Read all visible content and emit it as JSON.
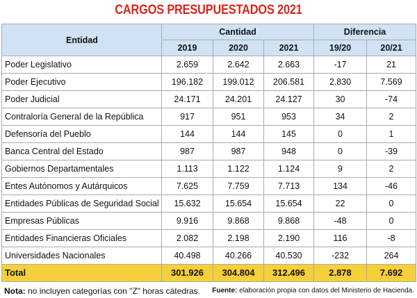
{
  "title": "CARGOS PRESUPUESTADOS 2021",
  "header": {
    "entidad": "Entidad",
    "cantidad": "Cantidad",
    "diferencia": "Diferencia",
    "years": [
      "2019",
      "2020",
      "2021"
    ],
    "diffs": [
      "19/20",
      "20/21"
    ]
  },
  "rows": [
    {
      "entidad": "Poder Legislativo",
      "y2019": "2.659",
      "y2020": "2.642",
      "y2021": "2.663",
      "d1920": "-17",
      "d2021": "21"
    },
    {
      "entidad": "Poder Ejecutivo",
      "y2019": "196.182",
      "y2020": "199.012",
      "y2021": "206.581",
      "d1920": "2.830",
      "d2021": "7.569"
    },
    {
      "entidad": "Poder Judicial",
      "y2019": "24.171",
      "y2020": "24.201",
      "y2021": "24.127",
      "d1920": "30",
      "d2021": "-74"
    },
    {
      "entidad": "Contraloría General de la República",
      "y2019": "917",
      "y2020": "951",
      "y2021": "953",
      "d1920": "34",
      "d2021": "2"
    },
    {
      "entidad": "Defensoría del Pueblo",
      "y2019": "144",
      "y2020": "144",
      "y2021": "145",
      "d1920": "0",
      "d2021": "1"
    },
    {
      "entidad": "Banca Central del Estado",
      "y2019": "987",
      "y2020": "987",
      "y2021": "948",
      "d1920": "0",
      "d2021": "-39"
    },
    {
      "entidad": "Gobiernos Departamentales",
      "y2019": "1.113",
      "y2020": "1.122",
      "y2021": "1.124",
      "d1920": "9",
      "d2021": "2"
    },
    {
      "entidad": "Entes Autónomos y Autárquicos",
      "y2019": "7.625",
      "y2020": "7.759",
      "y2021": "7.713",
      "d1920": "134",
      "d2021": "-46"
    },
    {
      "entidad": "Entidades Públicas de Seguridad Social",
      "y2019": "15.632",
      "y2020": "15.654",
      "y2021": "15.654",
      "d1920": "22",
      "d2021": "0"
    },
    {
      "entidad": "Empresas Públicas",
      "y2019": "9.916",
      "y2020": "9.868",
      "y2021": "9.868",
      "d1920": "-48",
      "d2021": "0"
    },
    {
      "entidad": "Entidades Financieras Oficiales",
      "y2019": "2.082",
      "y2020": "2.198",
      "y2021": "2.190",
      "d1920": "116",
      "d2021": "-8"
    },
    {
      "entidad": "Universidades Nacionales",
      "y2019": "40.498",
      "y2020": "40.266",
      "y2021": "40.530",
      "d1920": "-232",
      "d2021": "264"
    }
  ],
  "total": {
    "entidad": "Total",
    "y2019": "301.926",
    "y2020": "304.804",
    "y2021": "312.496",
    "d1920": "2.878",
    "d2021": "7.692"
  },
  "footer": {
    "note_label": "Nota:",
    "note_text": " no incluyen categorías con \"Z\" horas cátedras.",
    "source_label": "Fuente:",
    "source_text": " elaboración propia con datos del Ministerio de Hacienda."
  },
  "colors": {
    "title": "#d9261c",
    "header_bg": "#cfe3f4",
    "total_bg": "#f5d03a",
    "border": "#a9a9a9"
  }
}
